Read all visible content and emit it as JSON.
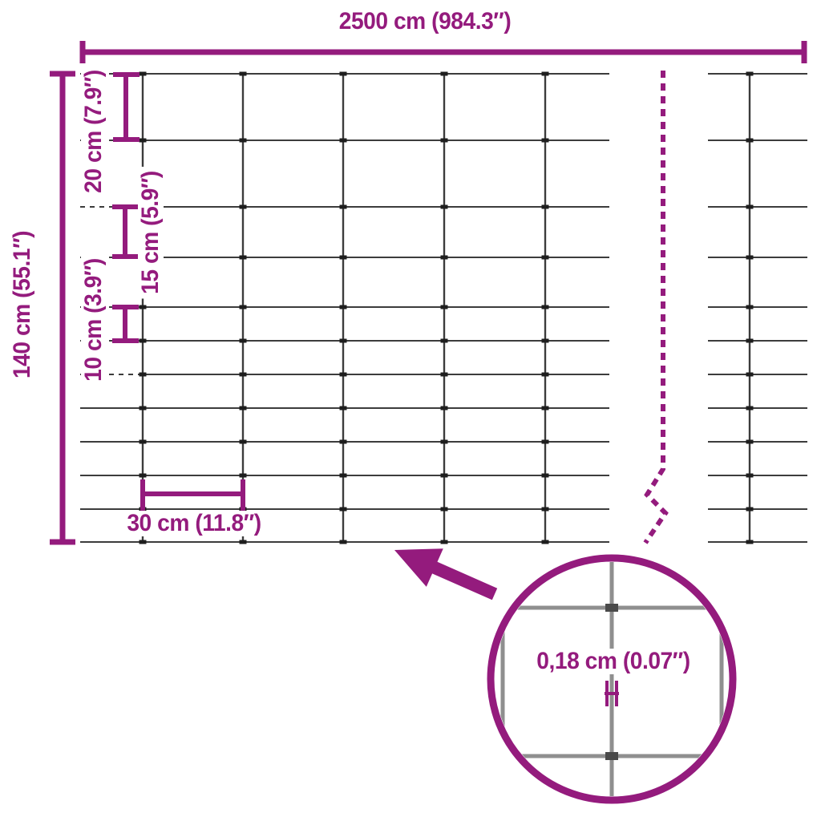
{
  "colors": {
    "accent": "#941B7D",
    "wire": "#3C3C3C",
    "knot": "#1E1E1E",
    "mag_wire": "#8F8F8F",
    "mag_knot": "#4A4A4A",
    "background": "#FFFFFF"
  },
  "annotations": {
    "total_width": "2500 cm (984.3″)",
    "total_height": "140 cm (55.1″)",
    "row_gap_large": "20 cm (7.9″)",
    "row_gap_medium": "15 cm (5.9″)",
    "row_gap_small": "10 cm (3.9″)",
    "column_gap": "30 cm (11.8″)",
    "wire_thickness": "0,18 cm (0.07″)"
  },
  "diagram": {
    "type": "fence-mesh-dimension-diagram",
    "total_width_cm": 2500,
    "total_height_cm": 140,
    "row_spacings_cm": [
      20,
      20,
      15,
      15,
      10,
      10,
      10,
      10,
      10,
      10,
      10
    ],
    "column_spacing_cm": 30,
    "wire_thickness_cm": 0.18
  }
}
